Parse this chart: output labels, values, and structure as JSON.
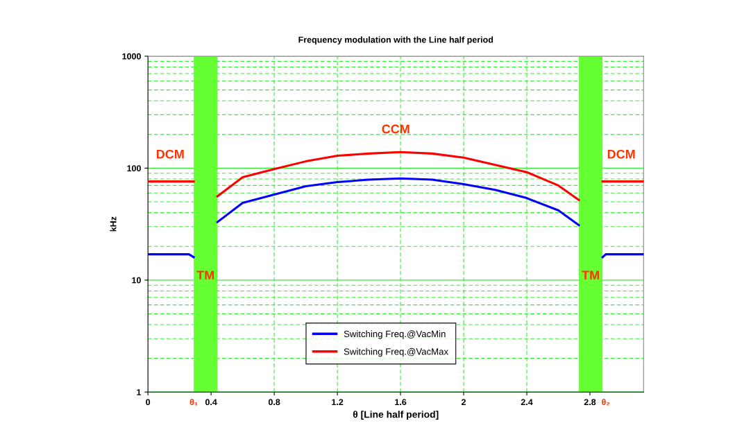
{
  "chart_data": {
    "type": "line",
    "title": "Frequency modulation with the Line half period",
    "xlabel": "θ [Line half period]",
    "ylabel": "kHz",
    "series": [
      {
        "name": "Switching Freq.@VacMin",
        "color": "#0000ff",
        "x": [
          0,
          0.26,
          0.29,
          0.44,
          0.6,
          0.8,
          1.0,
          1.2,
          1.4,
          1.6,
          1.8,
          2.0,
          2.2,
          2.4,
          2.6,
          2.73,
          2.88,
          2.9,
          3.14
        ],
        "values": [
          17,
          17,
          16,
          33,
          49,
          58,
          69,
          75,
          79,
          81,
          79,
          72,
          64,
          54,
          42,
          31,
          16,
          17,
          17
        ]
      },
      {
        "name": "Switching Freq.@VacMax",
        "color": "#ff0000",
        "x": [
          0,
          0.29,
          0.44,
          0.6,
          0.8,
          1.0,
          1.2,
          1.4,
          1.6,
          1.8,
          2.0,
          2.2,
          2.4,
          2.6,
          2.73,
          2.88,
          3.14
        ],
        "values": [
          76,
          76,
          56,
          83,
          98,
          115,
          129,
          135,
          139,
          135,
          124,
          107,
          92,
          70,
          52,
          76,
          76
        ]
      }
    ],
    "xlim": [
      0,
      3.14
    ],
    "xticks": [
      0,
      {
        "value": 0.29,
        "label": "θ₁"
      },
      0.4,
      0.8,
      1.2,
      1.6,
      2,
      2.4,
      2.8,
      {
        "value": 2.9,
        "label": "θ₂"
      }
    ],
    "log": "y",
    "ylim": [
      1,
      1000
    ],
    "yticks": [
      1,
      10,
      100,
      1000
    ],
    "bands": [
      {
        "axis": "x",
        "from": 0.29,
        "to": 0.44,
        "color": "#66ff33",
        "label": "TM"
      },
      {
        "axis": "x",
        "from": 2.73,
        "to": 2.88,
        "color": "#66ff33",
        "label": "TM"
      }
    ],
    "annotations": [
      "DCM",
      "DCM",
      "CCM"
    ],
    "grid": true,
    "legend": "bottom",
    "marker": "none",
    "line_style": "solid"
  }
}
